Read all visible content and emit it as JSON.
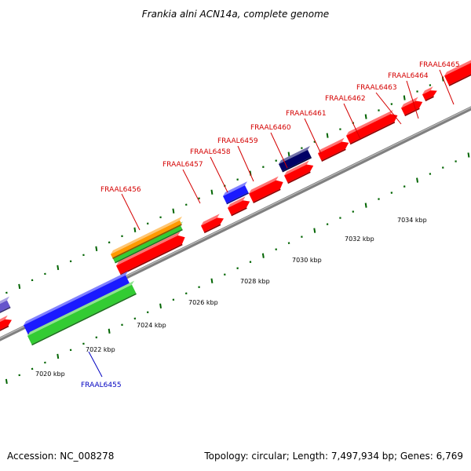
{
  "title": "Frankia alni ACN14a, complete genome",
  "footer": {
    "accession": "Accession: NC_008278",
    "stats": "Topology: circular; Length: 7,497,934 bp; Genes: 6,769"
  },
  "colors": {
    "backbone": "#808080",
    "tick": "#006400",
    "plus_label": "#d40000",
    "minus_label": "#0000c0",
    "red": "#ff0000",
    "blue": "#1a1aff",
    "navy": "#000066",
    "green": "#33cc33",
    "orange": "#ff9900",
    "purple": "#6655cc"
  },
  "scale_labels": [
    "7020 kbp",
    "7022 kbp",
    "7024 kbp",
    "7026 kbp",
    "7028 kbp",
    "7030 kbp",
    "7032 kbp",
    "7034 kbp"
  ],
  "gene_labels": [
    {
      "name": "FRAAL6455",
      "strand": "minus"
    },
    {
      "name": "FRAAL6456",
      "strand": "plus"
    },
    {
      "name": "FRAAL6457",
      "strand": "plus"
    },
    {
      "name": "FRAAL6458",
      "strand": "plus"
    },
    {
      "name": "FRAAL6459",
      "strand": "plus"
    },
    {
      "name": "FRAAL6460",
      "strand": "plus"
    },
    {
      "name": "FRAAL6461",
      "strand": "plus"
    },
    {
      "name": "FRAAL6462",
      "strand": "plus"
    },
    {
      "name": "FRAAL6463",
      "strand": "plus"
    },
    {
      "name": "FRAAL6464",
      "strand": "plus"
    },
    {
      "name": "FRAAL6465",
      "strand": "plus"
    }
  ]
}
